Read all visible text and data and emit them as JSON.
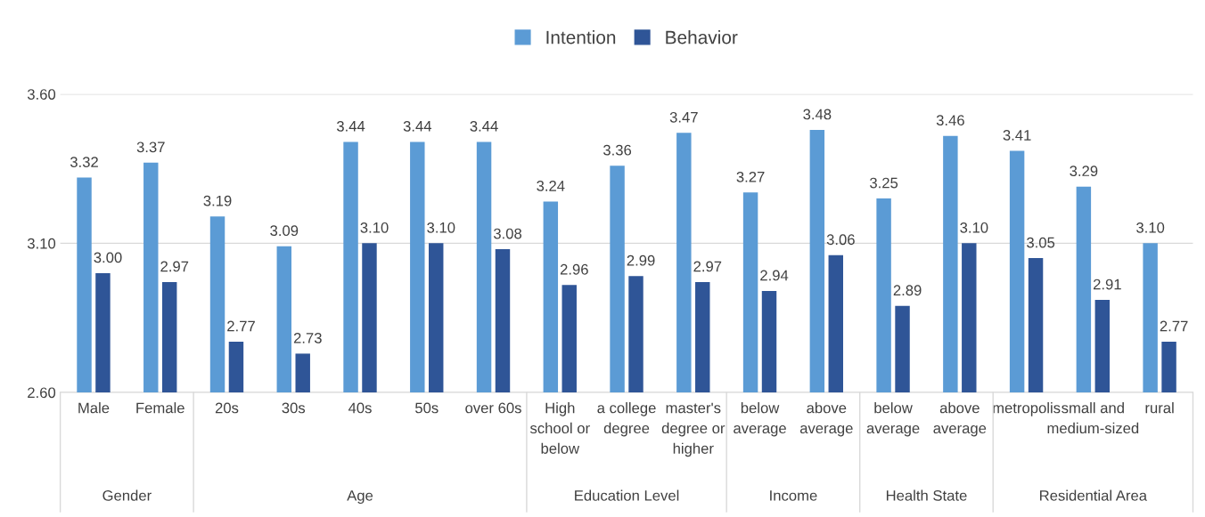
{
  "chart_data": {
    "type": "bar",
    "categories": [
      "Male",
      "Female",
      "20s",
      "30s",
      "40s",
      "50s",
      "over 60s",
      "High school or below",
      "a college degree",
      "master's degree or higher",
      "below average",
      "above average",
      "below average",
      "above average",
      "metropolis",
      "small and medium-sized",
      "rural"
    ],
    "series": [
      {
        "name": "Intention",
        "color": "#5b9bd5",
        "values": [
          3.32,
          3.37,
          3.19,
          3.09,
          3.44,
          3.44,
          3.44,
          3.24,
          3.36,
          3.47,
          3.27,
          3.48,
          3.25,
          3.46,
          3.41,
          3.29,
          3.1
        ]
      },
      {
        "name": "Behavior",
        "color": "#2f5597",
        "values": [
          3.0,
          2.97,
          2.77,
          2.73,
          3.1,
          3.1,
          3.08,
          2.96,
          2.99,
          2.97,
          2.94,
          3.06,
          2.89,
          3.1,
          3.05,
          2.91,
          2.77
        ]
      }
    ],
    "value_labels": [
      [
        "3.32",
        "3.37",
        "3.19",
        "3.09",
        "3.44",
        "3.44",
        "3.44",
        "3.24",
        "3.36",
        "3.47",
        "3.27",
        "3.48",
        "3.25",
        "3.46",
        "3.41",
        "3.29",
        "3.10"
      ],
      [
        "3.00",
        "2.97",
        "2.77",
        "2.73",
        "3.10",
        "3.10",
        "3.08",
        "2.96",
        "2.99",
        "2.97",
        "2.94",
        "3.06",
        "2.89",
        "3.10",
        "3.05",
        "2.91",
        "2.77"
      ]
    ],
    "ylim": [
      2.6,
      3.6
    ],
    "yticks": [
      {
        "value": 2.6,
        "label": "2.60"
      },
      {
        "value": 3.1,
        "label": "3.10"
      },
      {
        "value": 3.6,
        "label": "3.60"
      }
    ],
    "grid": "y",
    "legend": "top",
    "annotations": [
      "Gender",
      "Age",
      "Education Level",
      "Income",
      "Health State",
      "Residential Area"
    ]
  }
}
